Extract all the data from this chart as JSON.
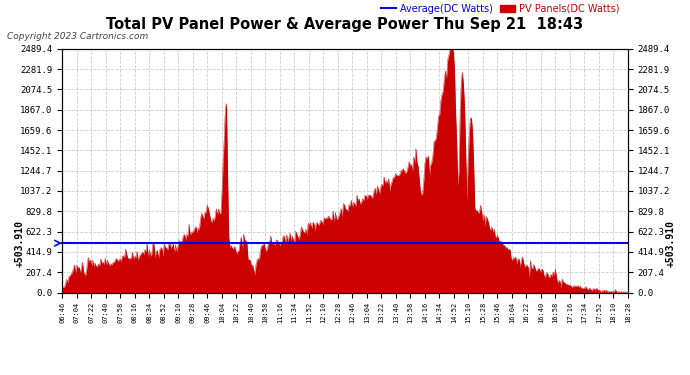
{
  "title": "Total PV Panel Power & Average Power Thu Sep 21  18:43",
  "copyright": "Copyright 2023 Cartronics.com",
  "legend_avg": "Average(DC Watts)",
  "legend_pv": "PV Panels(DC Watts)",
  "avg_label": "+503.910",
  "avg_value": 503.91,
  "y_max": 2489.4,
  "y_ticks": [
    0.0,
    207.4,
    414.9,
    622.3,
    829.8,
    1037.2,
    1244.7,
    1452.1,
    1659.6,
    1867.0,
    2074.5,
    2281.9,
    2489.4
  ],
  "x_labels": [
    "06:46",
    "07:04",
    "07:22",
    "07:40",
    "07:58",
    "08:16",
    "08:34",
    "08:52",
    "09:10",
    "09:28",
    "09:46",
    "10:04",
    "10:22",
    "10:40",
    "10:58",
    "11:16",
    "11:34",
    "11:52",
    "12:10",
    "12:28",
    "12:46",
    "13:04",
    "13:22",
    "13:40",
    "13:58",
    "14:16",
    "14:34",
    "14:52",
    "15:10",
    "15:28",
    "15:46",
    "16:04",
    "16:22",
    "16:40",
    "16:58",
    "17:16",
    "17:34",
    "17:52",
    "18:10",
    "18:28"
  ],
  "background_color": "#ffffff",
  "fill_color": "#cc0000",
  "line_color": "#0000ee",
  "grid_color": "#cccccc",
  "title_color": "#000000"
}
